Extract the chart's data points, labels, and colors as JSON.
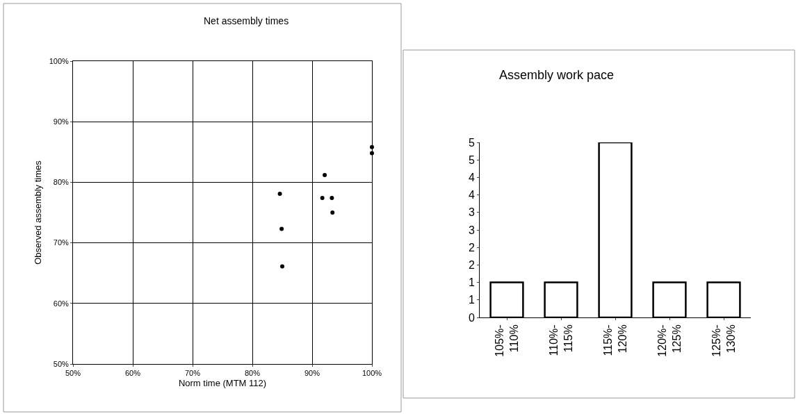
{
  "chart_data": [
    {
      "type": "scatter",
      "title": "Net assembly times",
      "xlabel": "Norm time (MTM 112)",
      "ylabel": "Observed assembly times",
      "series": [
        {
          "color": "#000000",
          "x": [
            100,
            100,
            92.1,
            84.6,
            91.7,
            93.3,
            93.4,
            84.9,
            85.0
          ],
          "values": [
            85.8,
            84.8,
            81.2,
            78.1,
            77.4,
            77.4,
            75.0,
            72.3,
            66.1
          ]
        }
      ],
      "xlim": [
        50,
        100
      ],
      "ylim": [
        50,
        100
      ],
      "xticks": [
        {
          "value": 50,
          "label": "50%"
        },
        {
          "value": 60,
          "label": "60%"
        },
        {
          "value": 70,
          "label": "70%"
        },
        {
          "value": 80,
          "label": "80%"
        },
        {
          "value": 90,
          "label": "90%"
        },
        {
          "value": 100,
          "label": "100%"
        }
      ],
      "yticks": [
        {
          "value": 50,
          "label": "50%"
        },
        {
          "value": 60,
          "label": "60%"
        },
        {
          "value": 70,
          "label": "70%"
        },
        {
          "value": 80,
          "label": "80%"
        },
        {
          "value": 90,
          "label": "90%"
        },
        {
          "value": 100,
          "label": "100%"
        }
      ],
      "grid": true,
      "marker": "circle"
    },
    {
      "type": "bar",
      "title": "Assembly work pace",
      "categories": [
        "105%-110%",
        "110%-115%",
        "115%-120%",
        "120%-125%",
        "125%-130%"
      ],
      "values": [
        1,
        1,
        5,
        1,
        1
      ],
      "color": "#ffffff",
      "ylim": [
        0,
        5
      ],
      "yticks": [
        0,
        {
          "value": 0.5,
          "label": "1"
        },
        1,
        {
          "value": 1.5,
          "label": "2"
        },
        2,
        {
          "value": 2.5,
          "label": "3"
        },
        3,
        {
          "value": 3.5,
          "label": "4"
        },
        4,
        {
          "value": 4.5,
          "label": "5"
        },
        5
      ],
      "grid": false
    }
  ]
}
